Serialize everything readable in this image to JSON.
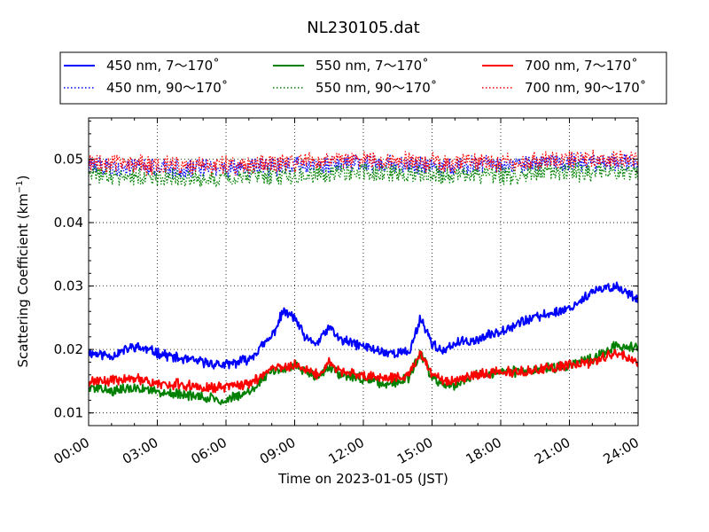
{
  "chart_data": {
    "type": "line",
    "title": "NL230105.dat",
    "xlabel": "Time on 2023-01-05 (JST)",
    "ylabel": "Scattering Coefficient (km",
    "ylabel_sup": "−1",
    "ylabel_close": ")",
    "xlim": [
      "2023-01-05 00:00",
      "2023-01-06 00:00"
    ],
    "ylim": [
      0.008,
      0.0565
    ],
    "grid": true,
    "legend_position": "top",
    "x_tick_labels": [
      "00:00",
      "03:00",
      "06:00",
      "09:00",
      "12:00",
      "15:00",
      "18:00",
      "21:00",
      "24:00"
    ],
    "y_tick_labels": [
      "0.01",
      "0.02",
      "0.03",
      "0.04",
      "0.05"
    ],
    "y_tick_values": [
      0.01,
      0.02,
      0.03,
      0.04,
      0.05
    ],
    "series": [
      {
        "name": "450 nm, 7～170˚",
        "color": "#0000ff",
        "style": "solid",
        "x": [
          "00:00",
          "01:00",
          "02:00",
          "03:00",
          "04:00",
          "05:00",
          "06:00",
          "07:00",
          "08:00",
          "08:30",
          "09:00",
          "09:30",
          "10:00",
          "10:30",
          "11:00",
          "12:00",
          "13:00",
          "14:00",
          "14:30",
          "15:00",
          "15:30",
          "16:00",
          "17:00",
          "18:00",
          "19:00",
          "20:00",
          "21:00",
          "22:00",
          "23:00",
          "24:00"
        ],
        "y": [
          0.0195,
          0.019,
          0.0205,
          0.0195,
          0.0185,
          0.018,
          0.0175,
          0.0185,
          0.022,
          0.026,
          0.025,
          0.0215,
          0.021,
          0.0235,
          0.0215,
          0.0205,
          0.0195,
          0.0195,
          0.025,
          0.021,
          0.0195,
          0.021,
          0.0215,
          0.023,
          0.0245,
          0.0255,
          0.0265,
          0.029,
          0.03,
          0.028
        ]
      },
      {
        "name": "450 nm, 90～170˚",
        "color": "#0000ff",
        "style": "dotted",
        "x": [
          "00:00",
          "03:00",
          "06:00",
          "09:00",
          "12:00",
          "15:00",
          "18:00",
          "21:00",
          "24:00"
        ],
        "y": [
          0.049,
          0.0485,
          0.0485,
          0.049,
          0.0495,
          0.049,
          0.049,
          0.0495,
          0.0495
        ]
      },
      {
        "name": "550 nm, 7～170˚",
        "color": "#008000",
        "style": "solid",
        "x": [
          "00:00",
          "01:00",
          "02:00",
          "03:00",
          "04:00",
          "05:00",
          "06:00",
          "07:00",
          "08:00",
          "09:00",
          "10:00",
          "10:30",
          "11:00",
          "12:00",
          "13:00",
          "14:00",
          "14:30",
          "15:00",
          "15:30",
          "16:00",
          "17:00",
          "18:00",
          "19:00",
          "20:00",
          "21:00",
          "22:00",
          "23:00",
          "24:00"
        ],
        "y": [
          0.014,
          0.0135,
          0.014,
          0.0135,
          0.013,
          0.0125,
          0.012,
          0.0135,
          0.0165,
          0.0175,
          0.0155,
          0.0175,
          0.016,
          0.0155,
          0.0145,
          0.0155,
          0.0195,
          0.0155,
          0.0145,
          0.0145,
          0.016,
          0.0165,
          0.0165,
          0.017,
          0.0175,
          0.0185,
          0.0205,
          0.0205
        ]
      },
      {
        "name": "550 nm, 90～170˚",
        "color": "#008000",
        "style": "dotted",
        "x": [
          "00:00",
          "03:00",
          "06:00",
          "09:00",
          "12:00",
          "15:00",
          "18:00",
          "21:00",
          "24:00"
        ],
        "y": [
          0.0475,
          0.047,
          0.047,
          0.0475,
          0.048,
          0.0475,
          0.0475,
          0.048,
          0.048
        ]
      },
      {
        "name": "700 nm, 7～170˚",
        "color": "#ff0000",
        "style": "solid",
        "x": [
          "00:00",
          "01:00",
          "02:00",
          "03:00",
          "04:00",
          "05:00",
          "06:00",
          "07:00",
          "08:00",
          "09:00",
          "10:00",
          "10:30",
          "11:00",
          "12:00",
          "13:00",
          "14:00",
          "14:30",
          "15:00",
          "15:30",
          "16:00",
          "17:00",
          "18:00",
          "19:00",
          "20:00",
          "21:00",
          "22:00",
          "23:00",
          "24:00"
        ],
        "y": [
          0.015,
          0.015,
          0.0155,
          0.0145,
          0.0145,
          0.014,
          0.014,
          0.0145,
          0.017,
          0.0175,
          0.016,
          0.018,
          0.0165,
          0.016,
          0.0155,
          0.016,
          0.0195,
          0.016,
          0.015,
          0.015,
          0.016,
          0.0165,
          0.0165,
          0.017,
          0.0175,
          0.018,
          0.0195,
          0.018
        ]
      },
      {
        "name": "700 nm, 90～170˚",
        "color": "#ff0000",
        "style": "dotted",
        "x": [
          "00:00",
          "03:00",
          "06:00",
          "09:00",
          "12:00",
          "15:00",
          "18:00",
          "21:00",
          "24:00"
        ],
        "y": [
          0.0495,
          0.049,
          0.049,
          0.0495,
          0.05,
          0.0495,
          0.0495,
          0.05,
          0.05
        ]
      }
    ]
  }
}
